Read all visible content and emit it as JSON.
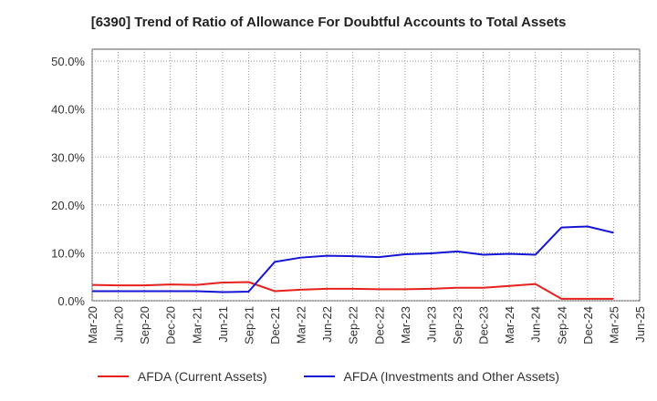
{
  "chart_data": {
    "type": "line",
    "title": "[6390]  Trend of Ratio of Allowance For Doubtful Accounts to Total Assets",
    "xlabel": "",
    "ylabel": "",
    "ylim": [
      0,
      52.5
    ],
    "y_ticks": [
      "0.0%",
      "10.0%",
      "20.0%",
      "30.0%",
      "40.0%",
      "50.0%"
    ],
    "y_tick_values": [
      0,
      10,
      20,
      30,
      40,
      50
    ],
    "x_tick_labels": [
      "Mar-20",
      "Jun-20",
      "Sep-20",
      "Dec-20",
      "Mar-21",
      "Jun-21",
      "Sep-21",
      "Dec-21",
      "Mar-22",
      "Jun-22",
      "Sep-22",
      "Dec-22",
      "Mar-23",
      "Jun-23",
      "Sep-23",
      "Dec-23",
      "Mar-24",
      "Jun-24",
      "Sep-24",
      "Dec-24",
      "Mar-25",
      "Jun-25"
    ],
    "categories": [
      "Mar-20",
      "Jun-20",
      "Sep-20",
      "Dec-20",
      "Mar-21",
      "Jun-21",
      "Sep-21",
      "Dec-21",
      "Mar-22",
      "Jun-22",
      "Sep-22",
      "Dec-22",
      "Mar-23",
      "Jun-23",
      "Sep-23",
      "Dec-23",
      "Mar-24",
      "Jun-24",
      "Sep-24",
      "Dec-24",
      "Mar-25"
    ],
    "grid": true,
    "legend_position": "bottom",
    "series": [
      {
        "name": "AFDA (Current Assets)",
        "color": "#e8201c",
        "values": [
          3.3,
          3.2,
          3.2,
          3.4,
          3.3,
          3.8,
          3.9,
          2.0,
          2.3,
          2.5,
          2.5,
          2.4,
          2.4,
          2.5,
          2.7,
          2.7,
          3.1,
          3.5,
          0.4,
          0.4,
          0.4
        ]
      },
      {
        "name": "AFDA (Investments and Other Assets)",
        "color": "#1515d6",
        "values": [
          2.0,
          2.0,
          2.0,
          2.0,
          2.0,
          1.8,
          1.9,
          8.1,
          9.0,
          9.4,
          9.3,
          9.1,
          9.7,
          9.9,
          10.3,
          9.6,
          9.8,
          9.6,
          15.3,
          15.5,
          14.2
        ]
      }
    ]
  }
}
